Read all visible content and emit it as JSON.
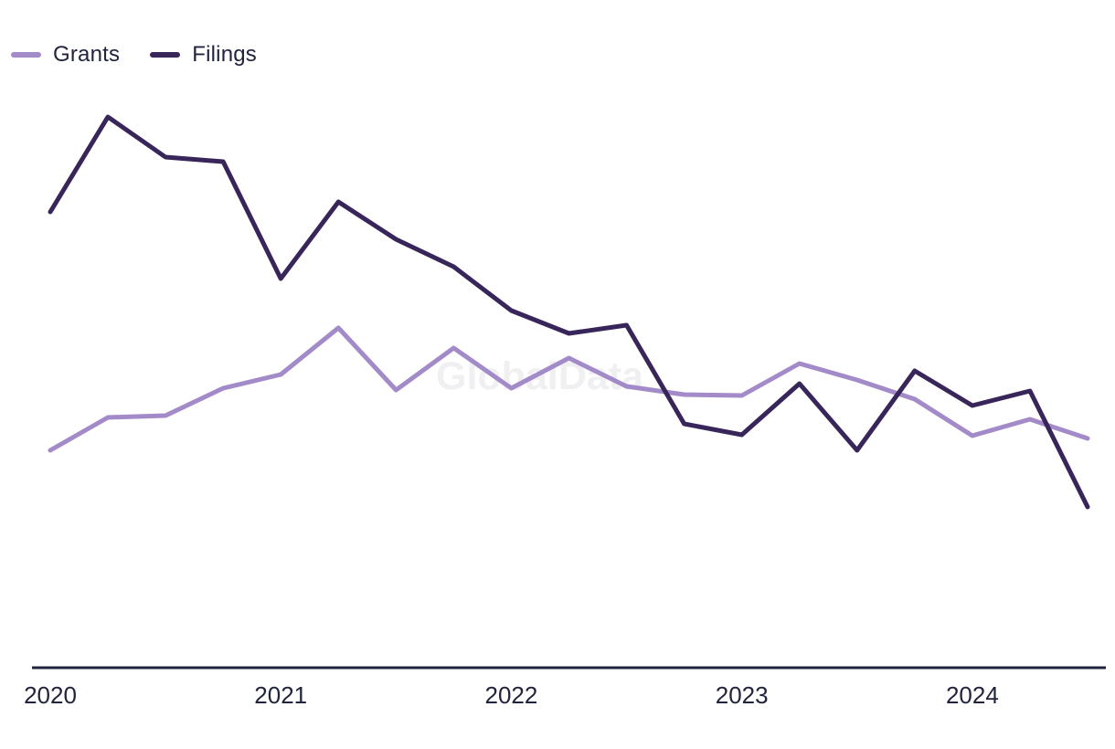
{
  "legend": {
    "items": [
      {
        "label": "Grants",
        "color": "#a28bc8"
      },
      {
        "label": "Filings",
        "color": "#38265a"
      }
    ]
  },
  "watermark": "GlobalData",
  "colors": {
    "grants_line": "#a28bc8",
    "filings_line": "#38265a",
    "axis": "#20243c",
    "tick_label": "#20243c",
    "watermark": "#f0eff2",
    "background": "#ffffff"
  },
  "chart_data": {
    "type": "line",
    "x": [
      "2020 Q1",
      "2020 Q2",
      "2020 Q3",
      "2020 Q4",
      "2021 Q1",
      "2021 Q2",
      "2021 Q3",
      "2021 Q4",
      "2022 Q1",
      "2022 Q2",
      "2022 Q3",
      "2022 Q4",
      "2023 Q1",
      "2023 Q2",
      "2023 Q3",
      "2023 Q4",
      "2024 Q1",
      "2024 Q2",
      "2024 Q3"
    ],
    "series": [
      {
        "name": "Grants",
        "color": "#a28bc8",
        "values": [
          237,
          273,
          275,
          305,
          320,
          371,
          303,
          349,
          305,
          338,
          307,
          298,
          297,
          332,
          314,
          293,
          253,
          271,
          250
        ]
      },
      {
        "name": "Filings",
        "color": "#38265a",
        "values": [
          498,
          602,
          558,
          553,
          425,
          509,
          468,
          438,
          390,
          365,
          374,
          266,
          254,
          310,
          237,
          324,
          286,
          302,
          175
        ]
      }
    ],
    "xticks": [
      "2020",
      "2021",
      "2022",
      "2023",
      "2024"
    ],
    "title": "",
    "xlabel": "",
    "ylabel": "",
    "ylim": [
      0,
      650
    ],
    "grid": false,
    "y_axis_shown": false,
    "value_scale_note": "no y-axis labels shown; values estimated in relative units",
    "legend_position": "top-left"
  }
}
